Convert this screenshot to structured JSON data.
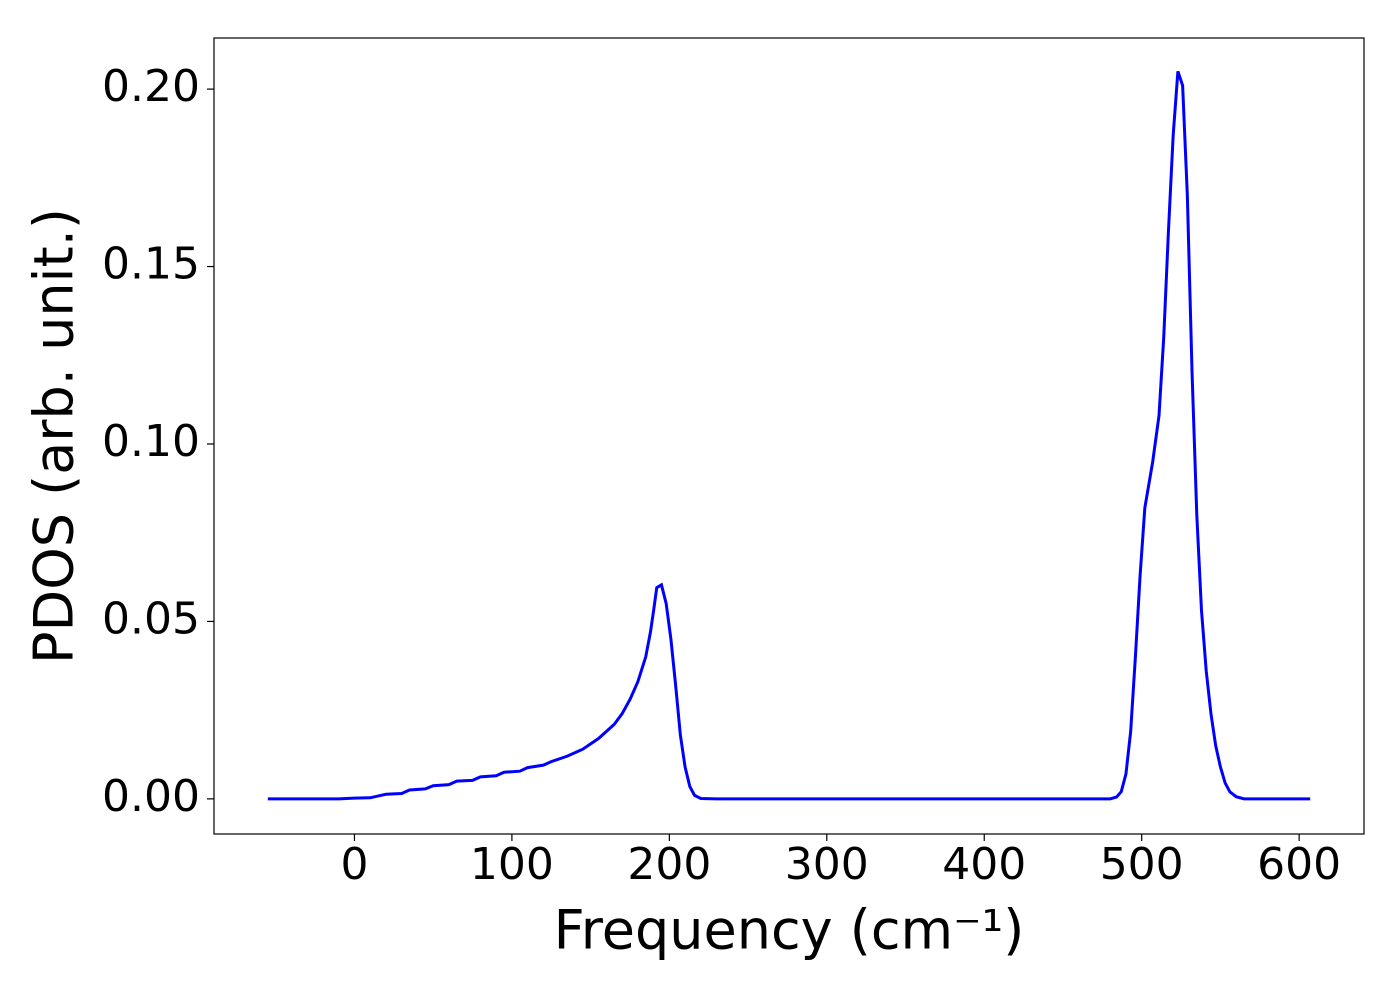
{
  "chart_data": {
    "type": "line",
    "xlabel": "Frequency (cm⁻¹)",
    "ylabel": "PDOS (arb. unit.)",
    "xlim": [
      -89.2,
      641.2
    ],
    "xticks": [
      0,
      100,
      200,
      300,
      400,
      500,
      600
    ],
    "ylim": [
      -0.0099,
      0.2144
    ],
    "yticks": [
      {
        "value": 0,
        "label": "0.00"
      },
      {
        "value": 0.05,
        "label": "0.05"
      },
      {
        "value": 0.1,
        "label": "0.10"
      },
      {
        "value": 0.15,
        "label": "0.15"
      },
      {
        "value": 0.2,
        "label": "0.20"
      }
    ],
    "grid": false,
    "x": [
      -55,
      -10,
      0,
      10,
      20,
      30,
      35,
      45,
      50,
      60,
      65,
      75,
      80,
      90,
      95,
      105,
      110,
      120,
      125,
      135,
      145,
      155,
      165,
      170,
      175,
      180,
      185,
      188,
      190,
      192,
      195,
      198,
      201,
      204,
      207,
      210,
      213,
      216,
      220,
      230,
      480,
      484,
      487,
      490,
      493,
      496,
      499,
      502,
      507,
      511,
      514,
      517,
      520,
      523,
      526,
      529,
      532,
      535,
      538,
      541,
      544,
      547,
      550,
      553,
      556,
      560,
      565,
      607
    ],
    "series": [
      {
        "color": "#0000ff",
        "values": [
          0,
          0,
          0.0002,
          0.0003,
          0.0013,
          0.0015,
          0.0025,
          0.0028,
          0.0037,
          0.004,
          0.005,
          0.0052,
          0.0062,
          0.0065,
          0.0075,
          0.0078,
          0.0088,
          0.0095,
          0.0105,
          0.012,
          0.014,
          0.017,
          0.021,
          0.024,
          0.028,
          0.033,
          0.04,
          0.047,
          0.053,
          0.0595,
          0.0603,
          0.055,
          0.045,
          0.032,
          0.018,
          0.009,
          0.0035,
          0.001,
          0.0001,
          0,
          0,
          0.0005,
          0.002,
          0.007,
          0.019,
          0.04,
          0.063,
          0.082,
          0.095,
          0.108,
          0.13,
          0.16,
          0.187,
          0.205,
          0.201,
          0.17,
          0.12,
          0.08,
          0.053,
          0.036,
          0.024,
          0.015,
          0.009,
          0.0045,
          0.002,
          0.0006,
          0,
          0
        ]
      }
    ]
  }
}
